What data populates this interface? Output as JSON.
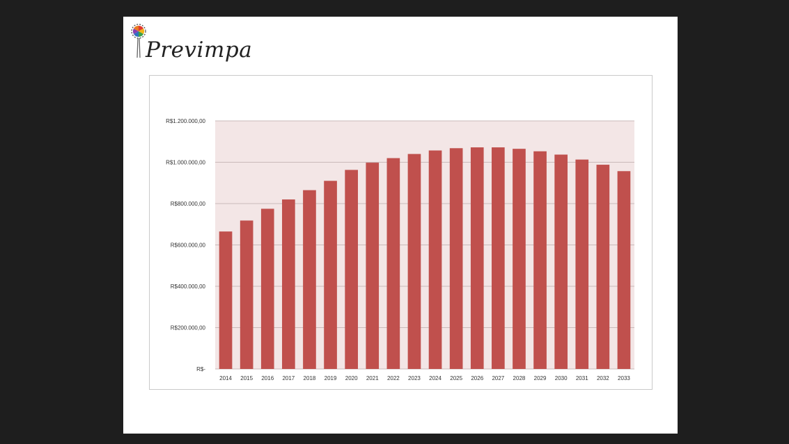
{
  "brand": {
    "name": "Previmpa",
    "logo_icon": "pinwheel-logo-icon"
  },
  "colors": {
    "background": "#1e1e1e",
    "slide": "#ffffff",
    "bar": "#c0504d",
    "plot_band": "#f3e6e6",
    "gridline": "#c9b9b9"
  },
  "chart_data": {
    "type": "bar",
    "title": "",
    "xlabel": "",
    "ylabel": "",
    "categories": [
      "2014",
      "2015",
      "2016",
      "2017",
      "2018",
      "2019",
      "2020",
      "2021",
      "2022",
      "2023",
      "2024",
      "2025",
      "2026",
      "2027",
      "2028",
      "2029",
      "2030",
      "2031",
      "2032",
      "2033"
    ],
    "values": [
      665000,
      718000,
      775000,
      820000,
      865000,
      910000,
      963000,
      998000,
      1020000,
      1040000,
      1057000,
      1068000,
      1072000,
      1072000,
      1065000,
      1053000,
      1037000,
      1013000,
      988000,
      957000
    ],
    "ylim": [
      0,
      1200000
    ],
    "yticks": [
      0,
      200000,
      400000,
      600000,
      800000,
      1000000,
      1200000
    ],
    "ytick_labels": [
      "R$-",
      "R$200.000,00",
      "R$400.000,00",
      "R$600.000,00",
      "R$800.000,00",
      "R$1.000.000,00",
      "R$1.200.000,00"
    ],
    "grid": true,
    "legend": "none"
  }
}
